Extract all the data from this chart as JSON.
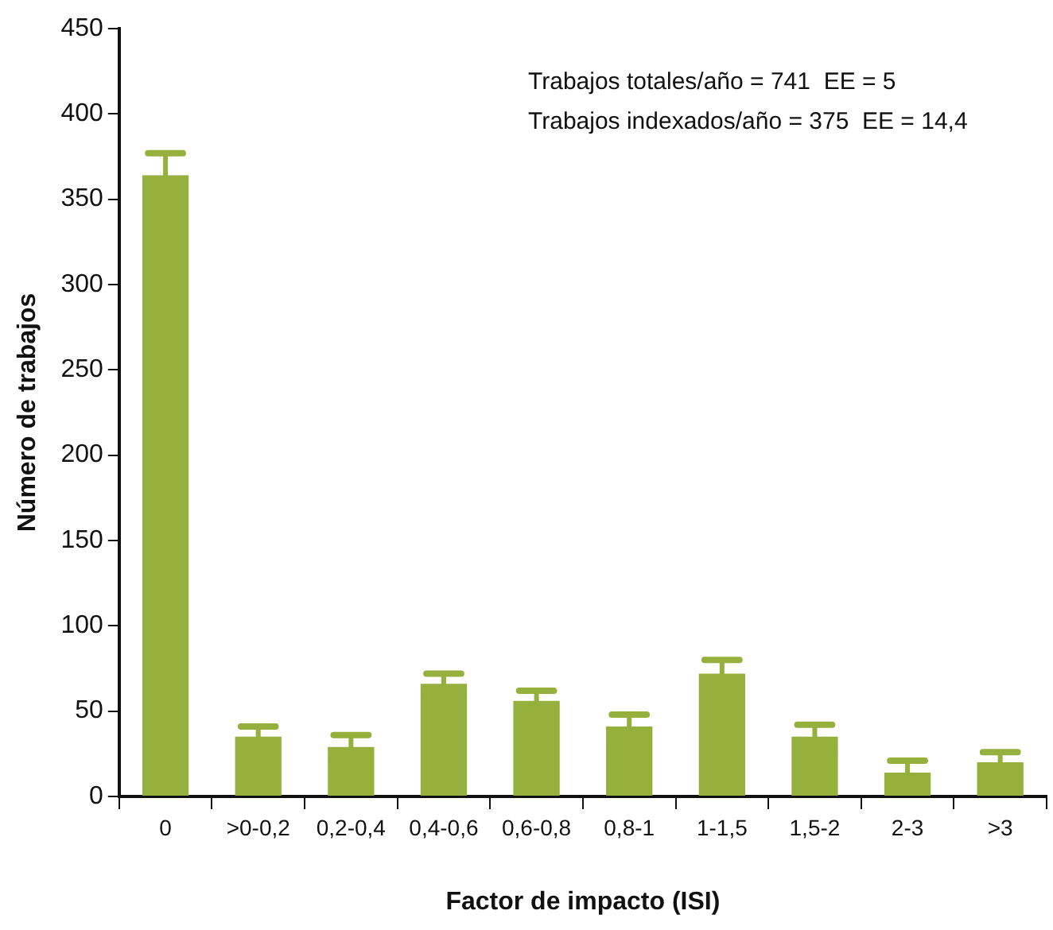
{
  "chart_data": {
    "type": "bar",
    "xlabel": "Factor de impacto (ISI)",
    "ylabel": "Número de trabajos",
    "categories": [
      "0",
      ">0-0,2",
      "0,2-0,4",
      "0,4-0,6",
      "0,6-0,8",
      "0,8-1",
      "1-1,5",
      "1,5-2",
      "2-3",
      ">3"
    ],
    "values": [
      364,
      35,
      29,
      66,
      56,
      41,
      72,
      35,
      14,
      20
    ],
    "errors": [
      13,
      6,
      7,
      6,
      6,
      7,
      8,
      7,
      7,
      6
    ],
    "color": "#95b03c",
    "ylim": [
      0,
      450
    ],
    "yticks": [
      0,
      50,
      100,
      150,
      200,
      250,
      300,
      350,
      400,
      450
    ],
    "grid": false,
    "legend": false,
    "annotations": [
      "Trabajos totales/año = 741  EE = 5",
      "Trabajos indexados/año = 375  EE = 14,4"
    ]
  }
}
